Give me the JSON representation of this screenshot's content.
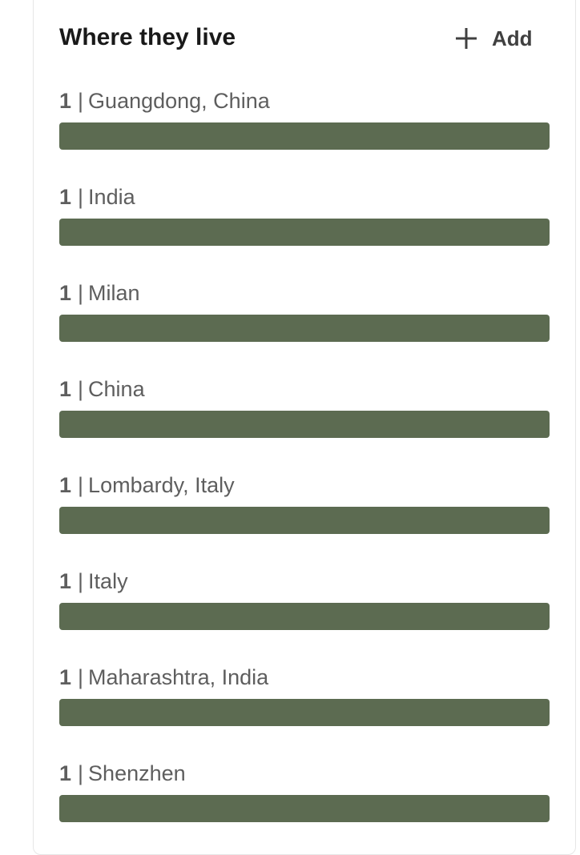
{
  "card": {
    "title": "Where they live",
    "add_label": "Add",
    "add_icon": "plus-icon"
  },
  "colors": {
    "bar": "#5c6b51",
    "title_text": "#191919",
    "label_text": "#5e5e5e"
  },
  "locations": [
    {
      "count": "1",
      "separator": "|",
      "name": "Guangdong, China",
      "fraction": 1.0
    },
    {
      "count": "1",
      "separator": "|",
      "name": "India",
      "fraction": 1.0
    },
    {
      "count": "1",
      "separator": "|",
      "name": "Milan",
      "fraction": 1.0
    },
    {
      "count": "1",
      "separator": "|",
      "name": "China",
      "fraction": 1.0
    },
    {
      "count": "1",
      "separator": "|",
      "name": "Lombardy, Italy",
      "fraction": 1.0
    },
    {
      "count": "1",
      "separator": "|",
      "name": "Italy",
      "fraction": 1.0
    },
    {
      "count": "1",
      "separator": "|",
      "name": "Maharashtra, India",
      "fraction": 1.0
    },
    {
      "count": "1",
      "separator": "|",
      "name": "Shenzhen",
      "fraction": 1.0
    }
  ]
}
